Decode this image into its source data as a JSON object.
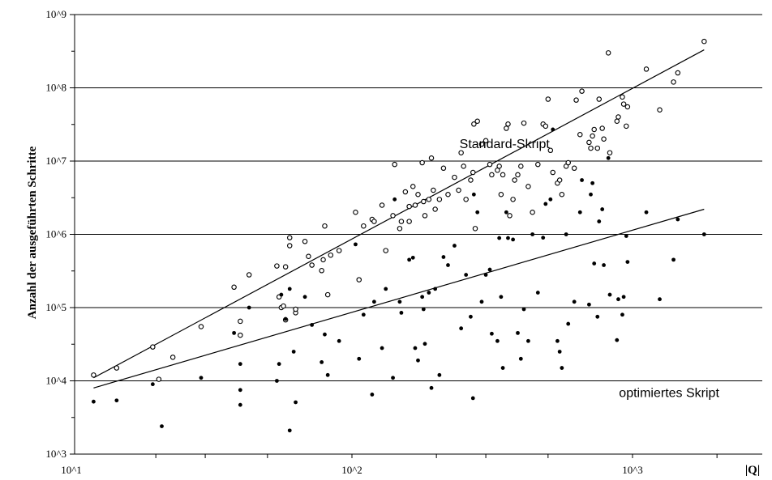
{
  "chart_data": {
    "type": "scatter",
    "xscale": "log",
    "yscale": "log",
    "xlim": [
      10,
      2000
    ],
    "ylim": [
      1000,
      1000000000
    ],
    "grid": "horizontal at major y ticks",
    "xlabel": "|Q|",
    "ylabel": "Anzahl der ausgeführten Schritte",
    "x_tick_labels": [
      "10^1",
      "10^2",
      "10^3"
    ],
    "y_tick_labels": [
      "10^3",
      "10^4",
      "10^5",
      "10^6",
      "10^7",
      "10^8",
      "10^9"
    ],
    "annotations": [
      {
        "text": "Standard-Skript",
        "x": 350,
        "y": 15000000
      },
      {
        "text": "optimiertes Skript",
        "x": 1350,
        "y": 6000
      }
    ],
    "series": [
      {
        "marker": "open-circle",
        "points": [
          [
            12,
            12000
          ],
          [
            14.5,
            15000
          ],
          [
            19.5,
            29000
          ],
          [
            20.5,
            10500
          ],
          [
            23,
            21000
          ],
          [
            29,
            55000
          ],
          [
            38,
            190000
          ],
          [
            40,
            65000
          ],
          [
            40,
            42000
          ],
          [
            43,
            280000
          ],
          [
            54,
            370000
          ],
          [
            55,
            140000
          ],
          [
            56,
            100000
          ],
          [
            57,
            105000
          ],
          [
            58,
            68000
          ],
          [
            58,
            360000
          ],
          [
            60,
            900000
          ],
          [
            60,
            700000
          ],
          [
            63,
            85000
          ],
          [
            63,
            95000
          ],
          [
            68,
            800000
          ],
          [
            70,
            500000
          ],
          [
            72,
            380000
          ],
          [
            78,
            320000
          ],
          [
            79,
            450000
          ],
          [
            80,
            1300000
          ],
          [
            82,
            150000
          ],
          [
            84,
            520000
          ],
          [
            90,
            600000
          ],
          [
            103,
            2000000
          ],
          [
            106,
            240000
          ],
          [
            110,
            1300000
          ],
          [
            118,
            1600000
          ],
          [
            120,
            1500000
          ],
          [
            128,
            2500000
          ],
          [
            132,
            600000
          ],
          [
            140,
            1800000
          ],
          [
            142,
            9000000
          ],
          [
            148,
            1200000
          ],
          [
            150,
            1500000
          ],
          [
            155,
            3800000
          ],
          [
            160,
            2400000
          ],
          [
            160,
            1500000
          ],
          [
            165,
            4500000
          ],
          [
            168,
            2500000
          ],
          [
            172,
            3500000
          ],
          [
            178,
            9500000
          ],
          [
            180,
            2800000
          ],
          [
            182,
            1800000
          ],
          [
            188,
            3000000
          ],
          [
            192,
            11000000
          ],
          [
            195,
            4000000
          ],
          [
            198,
            2200000
          ],
          [
            205,
            3000000
          ],
          [
            212,
            8000000
          ],
          [
            220,
            3500000
          ],
          [
            232,
            6000000
          ],
          [
            240,
            4000000
          ],
          [
            245,
            13000000
          ],
          [
            250,
            8500000
          ],
          [
            255,
            3000000
          ],
          [
            265,
            5500000
          ],
          [
            270,
            7000000
          ],
          [
            272,
            32000000
          ],
          [
            275,
            1200000
          ],
          [
            280,
            35000000
          ],
          [
            290,
            17000000
          ],
          [
            300,
            19000000
          ],
          [
            310,
            9000000
          ],
          [
            315,
            6500000
          ],
          [
            330,
            7500000
          ],
          [
            335,
            8500000
          ],
          [
            340,
            3500000
          ],
          [
            345,
            6500000
          ],
          [
            355,
            28000000
          ],
          [
            360,
            32000000
          ],
          [
            365,
            1800000
          ],
          [
            375,
            3000000
          ],
          [
            380,
            5500000
          ],
          [
            390,
            6500000
          ],
          [
            400,
            8500000
          ],
          [
            410,
            33000000
          ],
          [
            425,
            4500000
          ],
          [
            440,
            2000000
          ],
          [
            460,
            9000000
          ],
          [
            480,
            32000000
          ],
          [
            490,
            30000000
          ],
          [
            500,
            70000000
          ],
          [
            510,
            14000000
          ],
          [
            520,
            7000000
          ],
          [
            540,
            5000000
          ],
          [
            550,
            5500000
          ],
          [
            560,
            3500000
          ],
          [
            580,
            8500000
          ],
          [
            590,
            9500000
          ],
          [
            620,
            8000000
          ],
          [
            630,
            68000000
          ],
          [
            650,
            23000000
          ],
          [
            660,
            90000000
          ],
          [
            700,
            18000000
          ],
          [
            710,
            15000000
          ],
          [
            720,
            22000000
          ],
          [
            730,
            27000000
          ],
          [
            750,
            15000000
          ],
          [
            760,
            70000000
          ],
          [
            780,
            28000000
          ],
          [
            790,
            20000000
          ],
          [
            820,
            300000000
          ],
          [
            830,
            13000000
          ],
          [
            880,
            35000000
          ],
          [
            890,
            40000000
          ],
          [
            920,
            75000000
          ],
          [
            930,
            60000000
          ],
          [
            950,
            30000000
          ],
          [
            960,
            55000000
          ],
          [
            1120,
            180000000
          ],
          [
            1250,
            50000000
          ],
          [
            1400,
            120000000
          ],
          [
            1450,
            160000000
          ],
          [
            1800,
            430000000
          ]
        ]
      },
      {
        "marker": "filled-dot",
        "points": [
          [
            12,
            5200
          ],
          [
            14.5,
            5400
          ],
          [
            19.5,
            9000
          ],
          [
            21,
            2400
          ],
          [
            29,
            11000
          ],
          [
            38,
            45000
          ],
          [
            40,
            17000
          ],
          [
            40,
            7500
          ],
          [
            40,
            4700
          ],
          [
            43,
            100000
          ],
          [
            54,
            10000
          ],
          [
            55,
            17000
          ],
          [
            56,
            150000
          ],
          [
            58,
            70000
          ],
          [
            60,
            2100
          ],
          [
            60,
            180000
          ],
          [
            62,
            25000
          ],
          [
            63,
            5100
          ],
          [
            68,
            140000
          ],
          [
            72,
            58000
          ],
          [
            78,
            18000
          ],
          [
            80,
            43000
          ],
          [
            82,
            12000
          ],
          [
            90,
            35000
          ],
          [
            103,
            730000
          ],
          [
            106,
            20000
          ],
          [
            110,
            80000
          ],
          [
            118,
            6500
          ],
          [
            120,
            120000
          ],
          [
            128,
            28000
          ],
          [
            132,
            180000
          ],
          [
            140,
            11000
          ],
          [
            142,
            3000000
          ],
          [
            148,
            120000
          ],
          [
            150,
            85000
          ],
          [
            160,
            450000
          ],
          [
            165,
            480000
          ],
          [
            168,
            28000
          ],
          [
            172,
            19000
          ],
          [
            178,
            140000
          ],
          [
            180,
            95000
          ],
          [
            182,
            32000
          ],
          [
            188,
            160000
          ],
          [
            192,
            8000
          ],
          [
            198,
            180000
          ],
          [
            205,
            12000
          ],
          [
            212,
            490000
          ],
          [
            220,
            380000
          ],
          [
            232,
            700000
          ],
          [
            245,
            52000
          ],
          [
            255,
            280000
          ],
          [
            265,
            75000
          ],
          [
            270,
            5800
          ],
          [
            272,
            3500000
          ],
          [
            280,
            2000000
          ],
          [
            290,
            120000
          ],
          [
            300,
            280000
          ],
          [
            310,
            330000
          ],
          [
            315,
            44000
          ],
          [
            330,
            35000
          ],
          [
            335,
            890000
          ],
          [
            340,
            140000
          ],
          [
            345,
            15000
          ],
          [
            355,
            2000000
          ],
          [
            360,
            890000
          ],
          [
            375,
            850000
          ],
          [
            390,
            45000
          ],
          [
            400,
            20000
          ],
          [
            410,
            95000
          ],
          [
            425,
            35000
          ],
          [
            440,
            1000000
          ],
          [
            460,
            160000
          ],
          [
            480,
            900000
          ],
          [
            490,
            2600000
          ],
          [
            510,
            3000000
          ],
          [
            520,
            27000000
          ],
          [
            540,
            35000
          ],
          [
            550,
            25000
          ],
          [
            560,
            15000
          ],
          [
            580,
            1000000
          ],
          [
            590,
            60000
          ],
          [
            620,
            120000
          ],
          [
            650,
            2000000
          ],
          [
            660,
            5500000
          ],
          [
            700,
            110000
          ],
          [
            710,
            3500000
          ],
          [
            720,
            5000000
          ],
          [
            730,
            400000
          ],
          [
            750,
            75000
          ],
          [
            760,
            1500000
          ],
          [
            780,
            2200000
          ],
          [
            790,
            380000
          ],
          [
            820,
            11000000
          ],
          [
            830,
            150000
          ],
          [
            880,
            36000
          ],
          [
            890,
            130000
          ],
          [
            920,
            80000
          ],
          [
            930,
            140000
          ],
          [
            950,
            950000
          ],
          [
            960,
            420000
          ],
          [
            1120,
            2000000
          ],
          [
            1250,
            130000
          ],
          [
            1400,
            450000
          ],
          [
            1450,
            1600000
          ],
          [
            1800,
            1000000
          ]
        ]
      }
    ],
    "fit_lines": [
      {
        "name": "Standard-Skript",
        "x": [
          12,
          1800
        ],
        "y": [
          11000,
          330000000
        ]
      },
      {
        "name": "optimiertes Skript",
        "x": [
          12,
          1800
        ],
        "y": [
          8000,
          2200000
        ]
      }
    ]
  }
}
